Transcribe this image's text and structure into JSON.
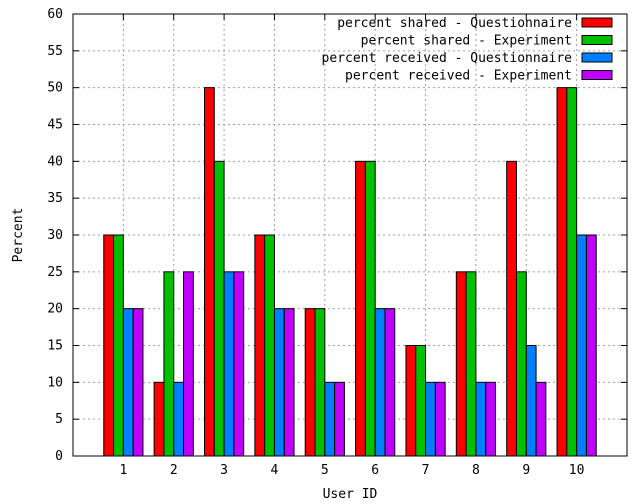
{
  "chart_data": {
    "type": "bar",
    "title": "",
    "xlabel": "User ID",
    "ylabel": "Percent",
    "categories": [
      "1",
      "2",
      "3",
      "4",
      "5",
      "6",
      "7",
      "8",
      "9",
      "10"
    ],
    "ylim": [
      0,
      60
    ],
    "xlim": [
      0,
      11
    ],
    "yticks": [
      0,
      5,
      10,
      15,
      20,
      25,
      30,
      35,
      40,
      45,
      50,
      55,
      60
    ],
    "grid": true,
    "legend_position": "top-right",
    "series": [
      {
        "name": "percent shared - Questionnaire",
        "color": "#ff0000",
        "values": [
          30,
          10,
          50,
          30,
          20,
          40,
          15,
          25,
          40,
          50
        ]
      },
      {
        "name": "percent shared - Experiment",
        "color": "#00c000",
        "values": [
          30,
          25,
          40,
          30,
          20,
          40,
          15,
          25,
          25,
          50
        ]
      },
      {
        "name": "percent received - Questionnaire",
        "color": "#0080ff",
        "values": [
          20,
          10,
          25,
          20,
          10,
          20,
          10,
          10,
          15,
          30
        ]
      },
      {
        "name": "percent received - Experiment",
        "color": "#c000ff",
        "values": [
          20,
          25,
          25,
          20,
          10,
          20,
          10,
          10,
          10,
          30
        ]
      }
    ]
  }
}
